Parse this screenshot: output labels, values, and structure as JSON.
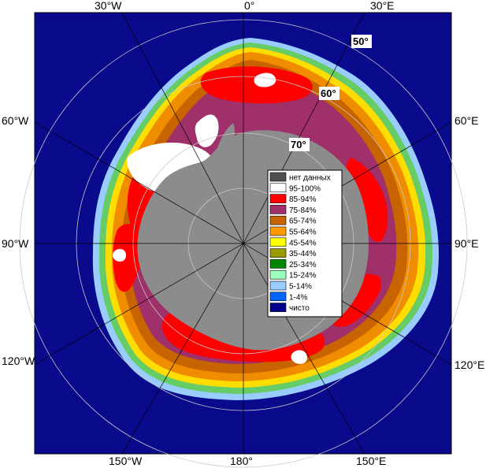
{
  "longitude_labels": {
    "top": [
      "30°W",
      "0°",
      "30°E"
    ],
    "bottom": [
      "150°W",
      "180°",
      "150°E"
    ],
    "left": [
      "60°W",
      "90°W",
      "120°W"
    ],
    "right": [
      "60°E",
      "90°E",
      "120°E"
    ]
  },
  "latitude_labels": [
    "50°",
    "60°",
    "70°"
  ],
  "legend": {
    "items": [
      {
        "label": "нет данных",
        "color": "#505050"
      },
      {
        "label": "95-100%",
        "color": "#ffffff"
      },
      {
        "label": "85-94%",
        "color": "#ff0000"
      },
      {
        "label": "75-84%",
        "color": "#a0306a"
      },
      {
        "label": "65-74%",
        "color": "#c86400"
      },
      {
        "label": "55-64%",
        "color": "#ff9900"
      },
      {
        "label": "45-54%",
        "color": "#ffff00"
      },
      {
        "label": "35-44%",
        "color": "#999900"
      },
      {
        "label": "25-34%",
        "color": "#008800"
      },
      {
        "label": "15-24%",
        "color": "#99ffbb"
      },
      {
        "label": "5-14%",
        "color": "#99ccff"
      },
      {
        "label": "1-4%",
        "color": "#0066ff"
      },
      {
        "label": "чисто",
        "color": "#00008b"
      }
    ]
  },
  "colors": {
    "ocean": "#0a0a8c",
    "land": "#8c8c8c",
    "grid": "#c8c8c8"
  }
}
